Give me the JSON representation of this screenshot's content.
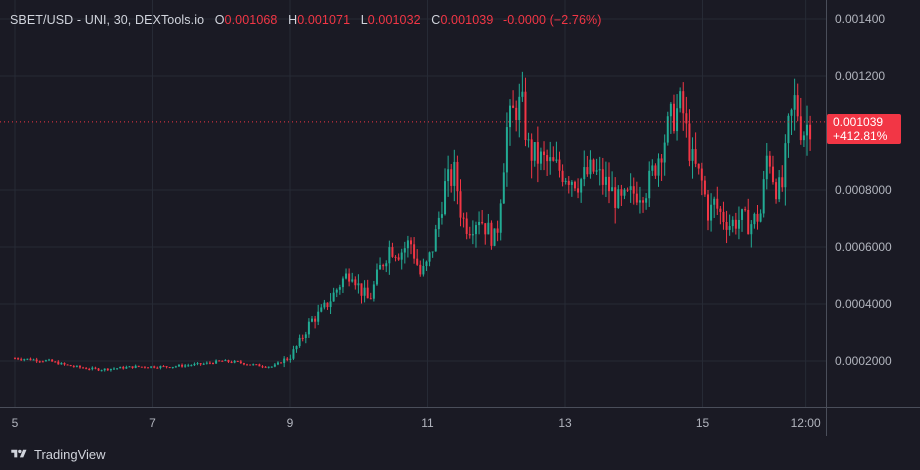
{
  "legend": {
    "symbol": "SBET/USD - UNI, 30, DEXTools.io",
    "open_label": "O",
    "open_value": "0.001068",
    "high_label": "H",
    "high_value": "0.001071",
    "low_label": "L",
    "low_value": "0.001032",
    "close_label": "C",
    "close_value": "0.001039",
    "change": "-0.0000 (−2.76%)"
  },
  "price_badge": {
    "price": "0.001039",
    "percent": "+412.81%"
  },
  "footer": {
    "brand": "TradingView"
  },
  "colors": {
    "up": "#22ab94",
    "down": "#f23645",
    "background": "#1a1a24",
    "grid": "#2a2e39",
    "text": "#d1d4dc"
  },
  "chart_data": {
    "type": "candlestick",
    "ylim": [
      0,
      0.00145
    ],
    "y_ticks": [
      "0.001400",
      "0.001200",
      "0.0008000",
      "0.0006000",
      "0.0004000",
      "0.0002000"
    ],
    "x_ticks": [
      "5",
      "7",
      "9",
      "11",
      "13",
      "15",
      "12:00"
    ],
    "current_price": 0.001039,
    "series": [
      {
        "name": "price",
        "x": [
          5,
          5.25,
          5.5,
          5.75,
          6,
          6.25,
          6.5,
          6.75,
          7,
          7.25,
          7.5,
          7.75,
          8,
          8.25,
          8.5,
          8.75,
          9,
          9.15,
          9.3,
          9.45,
          9.6,
          9.75,
          9.9,
          10,
          10.15,
          10.3,
          10.45,
          10.6,
          10.75,
          10.9,
          11,
          11.1,
          11.25,
          11.4,
          11.5,
          11.6,
          11.75,
          11.9,
          12,
          12.15,
          12.3,
          12.4,
          12.45,
          12.55,
          12.7,
          12.85,
          13,
          13.2,
          13.4,
          13.6,
          13.8,
          14,
          14.2,
          14.4,
          14.55,
          14.7,
          14.75,
          14.85,
          15,
          15.1,
          15.15,
          15.25,
          15.4,
          15.55,
          15.7,
          15.85,
          15.95,
          16.05,
          16.15,
          16.25,
          16.35,
          16.45,
          16.55
        ],
        "values": [
          0.00021,
          0.000205,
          0.0002,
          0.000185,
          0.000175,
          0.00017,
          0.000175,
          0.00018,
          0.00018,
          0.00018,
          0.000185,
          0.00019,
          0.0002,
          0.000195,
          0.000185,
          0.00018,
          0.000215,
          0.00027,
          0.00034,
          0.00037,
          0.00042,
          0.00048,
          0.00052,
          0.00046,
          0.00041,
          0.00052,
          0.0006,
          0.00058,
          0.00062,
          0.0005,
          0.00054,
          0.00062,
          0.00081,
          0.00086,
          0.0007,
          0.00067,
          0.00071,
          0.00065,
          0.00062,
          0.00101,
          0.0011,
          0.00108,
          0.00095,
          0.00092,
          0.0009,
          0.00088,
          0.00086,
          0.00083,
          0.00087,
          0.00082,
          0.00075,
          0.00079,
          0.00081,
          0.00095,
          0.00105,
          0.0011,
          0.00102,
          0.0009,
          0.00082,
          0.0007,
          0.00076,
          0.00072,
          0.00068,
          0.0007,
          0.00068,
          0.00072,
          0.00095,
          0.00082,
          0.00079,
          0.00101,
          0.00112,
          0.001,
          0.001039
        ]
      }
    ]
  }
}
